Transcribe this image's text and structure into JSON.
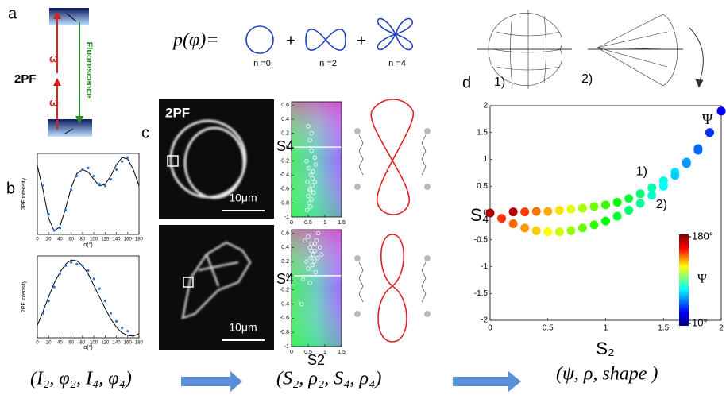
{
  "labels": {
    "panels": [
      "a",
      "b",
      "c",
      "d"
    ],
    "energy": {
      "title": "2PF",
      "omega": "ω",
      "fluorescence": "Fluorescence"
    },
    "formula": {
      "lhs": "p(φ)=",
      "plus": "+",
      "terms": [
        "n =0",
        "n =2",
        "n =4"
      ]
    },
    "micrograph": {
      "label": "2PF",
      "scale": "10μm"
    },
    "shapes": {
      "one": "1)",
      "two": "2)",
      "psi": "Ψ"
    },
    "pipeline": [
      "(I₂, φ₂, I₄, φ₄)",
      "(S₂, ρ₂, S₄, ρ₄)",
      "(ψ, ρ, shape )"
    ]
  },
  "chart_data": [
    {
      "type": "line",
      "xlabel": "α(°)",
      "ylabel": "2PF intensity",
      "xlim": [
        0,
        180
      ],
      "ylim": [
        0,
        1
      ],
      "xticks": [
        0,
        20,
        40,
        60,
        80,
        100,
        120,
        140,
        160,
        180
      ],
      "series": [
        {
          "style": "line",
          "color": "#000000",
          "x": [
            0,
            10,
            20,
            30,
            40,
            50,
            60,
            70,
            80,
            90,
            100,
            110,
            120,
            130,
            140,
            150,
            160,
            170,
            180
          ],
          "values": [
            0.85,
            0.55,
            0.2,
            0.04,
            0.1,
            0.32,
            0.58,
            0.75,
            0.8,
            0.77,
            0.68,
            0.6,
            0.62,
            0.72,
            0.86,
            0.95,
            0.93,
            0.8,
            0.6
          ]
        },
        {
          "style": "markers",
          "color": "#2e75d6",
          "x": [
            10,
            20,
            30,
            40,
            50,
            60,
            70,
            80,
            90,
            100,
            110,
            120,
            130,
            140,
            150,
            160
          ],
          "values": [
            0.6,
            0.25,
            0.05,
            0.08,
            0.3,
            0.55,
            0.72,
            0.8,
            0.82,
            0.72,
            0.62,
            0.6,
            0.68,
            0.8,
            0.9,
            0.95
          ]
        }
      ]
    },
    {
      "type": "line",
      "xlabel": "α(°)",
      "ylabel": "2PF intensity",
      "xlim": [
        0,
        180
      ],
      "ylim": [
        0,
        1
      ],
      "xticks": [
        0,
        20,
        40,
        60,
        80,
        100,
        120,
        140,
        160,
        180
      ],
      "series": [
        {
          "style": "line",
          "color": "#000000",
          "x": [
            0,
            10,
            20,
            30,
            40,
            50,
            60,
            70,
            80,
            90,
            100,
            110,
            120,
            130,
            140,
            150,
            160,
            170,
            180
          ],
          "values": [
            0.15,
            0.32,
            0.5,
            0.67,
            0.8,
            0.9,
            0.95,
            0.94,
            0.88,
            0.78,
            0.64,
            0.5,
            0.36,
            0.23,
            0.13,
            0.06,
            0.03,
            0.02,
            0.05
          ]
        },
        {
          "style": "markers",
          "color": "#2e75d6",
          "x": [
            10,
            20,
            30,
            40,
            50,
            60,
            70,
            80,
            90,
            100,
            110,
            120,
            130,
            140,
            150,
            160
          ],
          "values": [
            0.3,
            0.45,
            0.62,
            0.78,
            0.88,
            0.92,
            0.9,
            0.88,
            0.82,
            0.72,
            0.6,
            0.45,
            0.3,
            0.2,
            0.12,
            0.08
          ]
        }
      ]
    },
    {
      "type": "scatter",
      "ylabel": "S4",
      "xlim": [
        0,
        1.5
      ],
      "ylim": [
        -1,
        0.65
      ],
      "xticks": [
        0,
        0.5,
        1,
        1.5
      ],
      "yticks": [
        0.6,
        0.4,
        0.2,
        0,
        -0.2,
        -0.4,
        -0.6,
        -0.8,
        -1
      ],
      "series": [
        {
          "style": "markers",
          "color": "#ffffff",
          "x": [
            0.5,
            0.55,
            0.6,
            0.45,
            0.7,
            0.52,
            0.58,
            0.65,
            0.48,
            0.62,
            0.55,
            0.7,
            0.5,
            0.6,
            0.66,
            0.53,
            0.57,
            0.72,
            0.47,
            0.6,
            0.63,
            0.56
          ],
          "values": [
            0.3,
            0.1,
            -0.05,
            -0.2,
            -0.15,
            -0.3,
            -0.4,
            -0.35,
            -0.5,
            -0.55,
            -0.6,
            -0.5,
            -0.7,
            -0.75,
            -0.65,
            -0.8,
            -0.85,
            -0.25,
            -0.9,
            0.2,
            -0.45,
            -0.62
          ]
        }
      ]
    },
    {
      "type": "scatter",
      "xlabel": "S2",
      "ylabel": "S4",
      "xlim": [
        0,
        1.5
      ],
      "ylim": [
        -1,
        0.65
      ],
      "xticks": [
        0,
        0.5,
        1,
        1.5
      ],
      "yticks": [
        0.6,
        0.4,
        0.2,
        0,
        -0.2,
        -0.4,
        -0.6,
        -0.8,
        -1
      ],
      "series": [
        {
          "style": "markers",
          "color": "#ffffff",
          "x": [
            0.4,
            0.5,
            0.55,
            0.6,
            0.65,
            0.7,
            0.75,
            0.8,
            0.45,
            0.5,
            0.58,
            0.62,
            0.68,
            0.72,
            0.85,
            0.9,
            0.35,
            0.55,
            0.6,
            0.3,
            0.7,
            0.78
          ],
          "values": [
            0.5,
            0.55,
            0.4,
            0.45,
            0.3,
            0.35,
            0.5,
            0.6,
            0.2,
            0.1,
            0.25,
            0.15,
            0.2,
            0.05,
            0.4,
            0.3,
            -0.05,
            -0.1,
            0.35,
            -0.4,
            0.45,
            0.25
          ]
        }
      ]
    },
    {
      "type": "scatter",
      "xlabel": "S₂",
      "ylabel": "S₄",
      "xlim": [
        0,
        2
      ],
      "ylim": [
        -2,
        2
      ],
      "xticks": [
        0,
        0.5,
        1,
        1.5,
        2
      ],
      "yticks": [
        2,
        1.5,
        1,
        0.5,
        0,
        -0.5,
        -1,
        -1.5,
        -2
      ],
      "colorbar": {
        "title": "Ψ",
        "colormap": "jet",
        "ticks": [
          {
            "value": 180,
            "label": "180°"
          },
          {
            "value": 10,
            "label": "10°"
          }
        ]
      },
      "series": [
        {
          "style": "markers",
          "colormap": "jet",
          "label": "1)",
          "x": [
            0.2,
            0.3,
            0.4,
            0.5,
            0.6,
            0.7,
            0.8,
            0.9,
            1.0,
            1.1,
            1.2,
            1.3,
            1.4,
            1.5,
            1.6,
            1.7,
            1.8,
            1.9,
            2.0
          ],
          "values": [
            0.02,
            0.02,
            0.03,
            0.03,
            0.05,
            0.07,
            0.09,
            0.12,
            0.15,
            0.2,
            0.27,
            0.36,
            0.47,
            0.6,
            0.76,
            0.95,
            1.2,
            1.5,
            1.9
          ]
        },
        {
          "style": "markers",
          "colormap": "jet",
          "label": "2)",
          "x": [
            0,
            0.1,
            0.2,
            0.3,
            0.4,
            0.5,
            0.6,
            0.7,
            0.8,
            0.9,
            1.0,
            1.1,
            1.2,
            1.3,
            1.4,
            1.5,
            1.6,
            1.7,
            1.8,
            1.9,
            2.0
          ],
          "values": [
            0,
            -0.1,
            -0.2,
            -0.28,
            -0.33,
            -0.35,
            -0.35,
            -0.33,
            -0.28,
            -0.22,
            -0.15,
            -0.06,
            0.05,
            0.18,
            0.33,
            0.5,
            0.7,
            0.92,
            1.17,
            1.5,
            1.9
          ]
        }
      ]
    }
  ]
}
